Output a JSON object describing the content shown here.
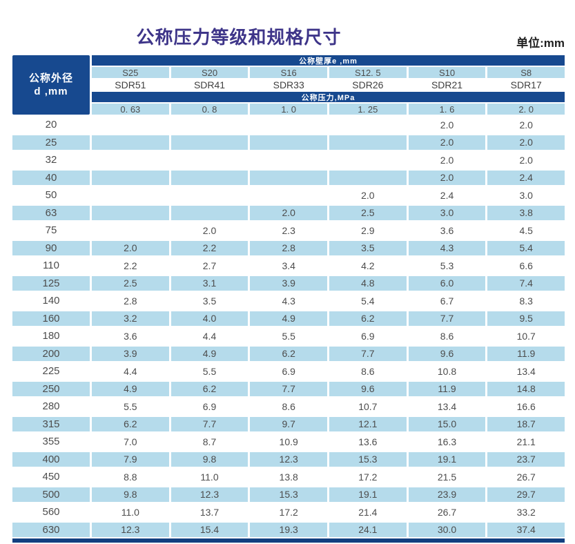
{
  "header": {
    "title": "公称压力等级和规格尺寸",
    "unit_label": "单位:mm"
  },
  "table": {
    "corner": {
      "line1": "公称外径",
      "line2": "d ,mm"
    },
    "wall_thickness_label": "公称壁厚e ,mm",
    "pressure_label": "公称压力,MPa",
    "series": [
      "S25",
      "S20",
      "S16",
      "S12. 5",
      "S10",
      "S8"
    ],
    "sdr": [
      "SDR51",
      "SDR41",
      "SDR33",
      "SDR26",
      "SDR21",
      "SDR17"
    ],
    "pressures": [
      "0. 63",
      "0. 8",
      "1. 0",
      "1. 25",
      "1. 6",
      "2. 0"
    ],
    "rows": [
      {
        "d": "20",
        "values": [
          "",
          "",
          "",
          "",
          "2.0",
          "2.0"
        ]
      },
      {
        "d": "25",
        "values": [
          "",
          "",
          "",
          "",
          "2.0",
          "2.0"
        ]
      },
      {
        "d": "32",
        "values": [
          "",
          "",
          "",
          "",
          "2.0",
          "2.0"
        ]
      },
      {
        "d": "40",
        "values": [
          "",
          "",
          "",
          "",
          "2.0",
          "2.4"
        ]
      },
      {
        "d": "50",
        "values": [
          "",
          "",
          "",
          "2.0",
          "2.4",
          "3.0"
        ]
      },
      {
        "d": "63",
        "values": [
          "",
          "",
          "2.0",
          "2.5",
          "3.0",
          "3.8"
        ]
      },
      {
        "d": "75",
        "values": [
          "",
          "2.0",
          "2.3",
          "2.9",
          "3.6",
          "4.5"
        ]
      },
      {
        "d": "90",
        "values": [
          "2.0",
          "2.2",
          "2.8",
          "3.5",
          "4.3",
          "5.4"
        ]
      },
      {
        "d": "110",
        "values": [
          "2.2",
          "2.7",
          "3.4",
          "4.2",
          "5.3",
          "6.6"
        ]
      },
      {
        "d": "125",
        "values": [
          "2.5",
          "3.1",
          "3.9",
          "4.8",
          "6.0",
          "7.4"
        ]
      },
      {
        "d": "140",
        "values": [
          "2.8",
          "3.5",
          "4.3",
          "5.4",
          "6.7",
          "8.3"
        ]
      },
      {
        "d": "160",
        "values": [
          "3.2",
          "4.0",
          "4.9",
          "6.2",
          "7.7",
          "9.5"
        ]
      },
      {
        "d": "180",
        "values": [
          "3.6",
          "4.4",
          "5.5",
          "6.9",
          "8.6",
          "10.7"
        ]
      },
      {
        "d": "200",
        "values": [
          "3.9",
          "4.9",
          "6.2",
          "7.7",
          "9.6",
          "11.9"
        ]
      },
      {
        "d": "225",
        "values": [
          "4.4",
          "5.5",
          "6.9",
          "8.6",
          "10.8",
          "13.4"
        ]
      },
      {
        "d": "250",
        "values": [
          "4.9",
          "6.2",
          "7.7",
          "9.6",
          "11.9",
          "14.8"
        ]
      },
      {
        "d": "280",
        "values": [
          "5.5",
          "6.9",
          "8.6",
          "10.7",
          "13.4",
          "16.6"
        ]
      },
      {
        "d": "315",
        "values": [
          "6.2",
          "7.7",
          "9.7",
          "12.1",
          "15.0",
          "18.7"
        ]
      },
      {
        "d": "355",
        "values": [
          "7.0",
          "8.7",
          "10.9",
          "13.6",
          "16.3",
          "21.1"
        ]
      },
      {
        "d": "400",
        "values": [
          "7.9",
          "9.8",
          "12.3",
          "15.3",
          "19.1",
          "23.7"
        ]
      },
      {
        "d": "450",
        "values": [
          "8.8",
          "11.0",
          "13.8",
          "17.2",
          "21.5",
          "26.7"
        ]
      },
      {
        "d": "500",
        "values": [
          "9.8",
          "12.3",
          "15.3",
          "19.1",
          "23.9",
          "29.7"
        ]
      },
      {
        "d": "560",
        "values": [
          "11.0",
          "13.7",
          "17.2",
          "21.4",
          "26.7",
          "33.2"
        ]
      },
      {
        "d": "630",
        "values": [
          "12.3",
          "15.4",
          "19.3",
          "24.1",
          "30.0",
          "37.4"
        ]
      }
    ]
  },
  "colors": {
    "dark_blue": "#17498f",
    "light_blue": "#b5dbeb",
    "bottom_bar": "#123f80",
    "title": "#3e3589"
  }
}
